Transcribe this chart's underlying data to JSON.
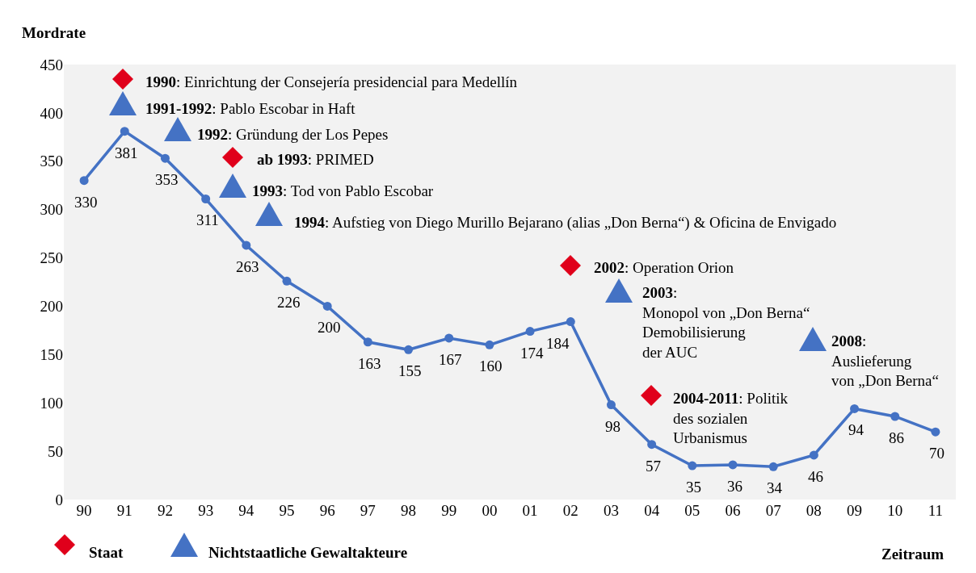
{
  "chart_data": {
    "type": "line",
    "ylabel": "Mordrate",
    "xlabel": "Zeitraum",
    "categories": [
      "90",
      "91",
      "92",
      "93",
      "94",
      "95",
      "96",
      "97",
      "98",
      "99",
      "00",
      "01",
      "02",
      "03",
      "04",
      "05",
      "06",
      "07",
      "08",
      "09",
      "10",
      "11"
    ],
    "values": [
      330,
      381,
      353,
      311,
      263,
      226,
      200,
      163,
      155,
      167,
      160,
      174,
      184,
      98,
      57,
      35,
      36,
      34,
      46,
      94,
      86,
      70
    ],
    "color": "#4472c4",
    "marker": "circle",
    "data_labels": true,
    "grid": false,
    "ylim": [
      0,
      450
    ],
    "yticks": [
      0,
      50,
      100,
      150,
      200,
      250,
      300,
      350,
      400,
      450
    ],
    "annotations": [
      "1990: Einrichtung der Consejería presidencial para Medellín",
      "1991-1992: Pablo Escobar in Haft",
      "1992: Gründung der Los Pepes",
      "ab 1993: PRIMED",
      "1993: Tod von Pablo Escobar",
      "1994: Aufstieg von Diego Murillo Bejarano (alias „Don Berna“) & Oficina de Envigado",
      "2002: Operation Orion",
      "2003:\nMonopol von „Don Berna“\nDemobilisierung\nder AUC",
      "2008:\nAuslieferung\nvon „Don Berna“",
      "2004-2011: Politik\ndes sozialen\nUrbanismus",
      "Staat",
      "Nichtstaatliche Gewaltakteure"
    ]
  }
}
